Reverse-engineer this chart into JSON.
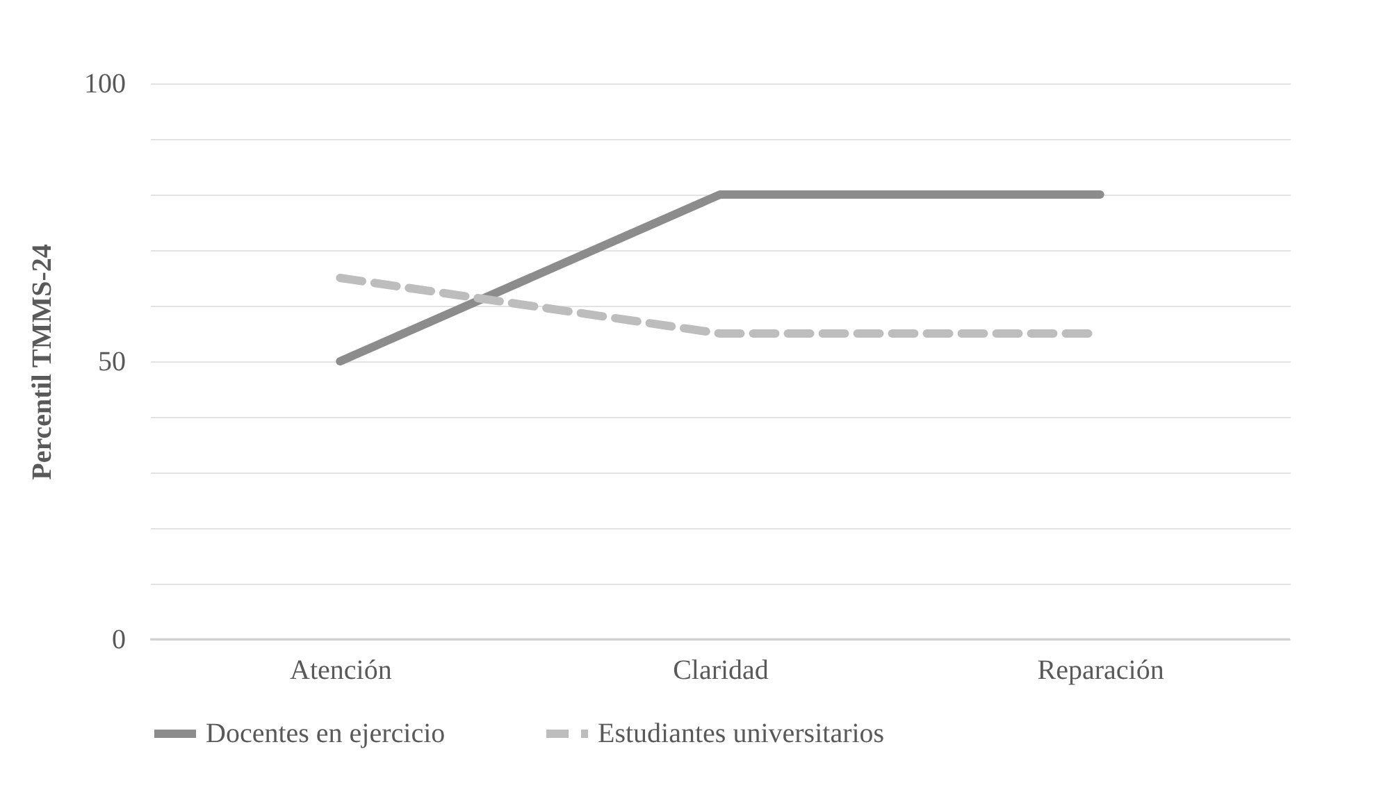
{
  "chart_data": {
    "type": "line",
    "ylabel": "Percentil TMMS-24",
    "categories": [
      "Atención",
      "Claridad",
      "Reparación"
    ],
    "series": [
      {
        "name": "Docentes en ejercicio",
        "color": "#8c8c8c",
        "values": [
          50,
          80,
          80
        ],
        "line_style": "solid"
      },
      {
        "name": "Estudiantes universitarios",
        "color": "#bdbdbd",
        "values": [
          65,
          55,
          55
        ],
        "line_style": "dashed"
      }
    ],
    "ylim": [
      0,
      100
    ],
    "yticks": [
      0,
      {
        "value": 10,
        "label": null
      },
      {
        "value": 20,
        "label": null
      },
      {
        "value": 30,
        "label": null
      },
      {
        "value": 40,
        "label": null
      },
      50,
      {
        "value": 60,
        "label": null
      },
      {
        "value": 70,
        "label": null
      },
      {
        "value": 80,
        "label": null
      },
      {
        "value": 90,
        "label": null
      },
      100
    ],
    "grid": true,
    "legend": "bottom",
    "marker": "none"
  }
}
